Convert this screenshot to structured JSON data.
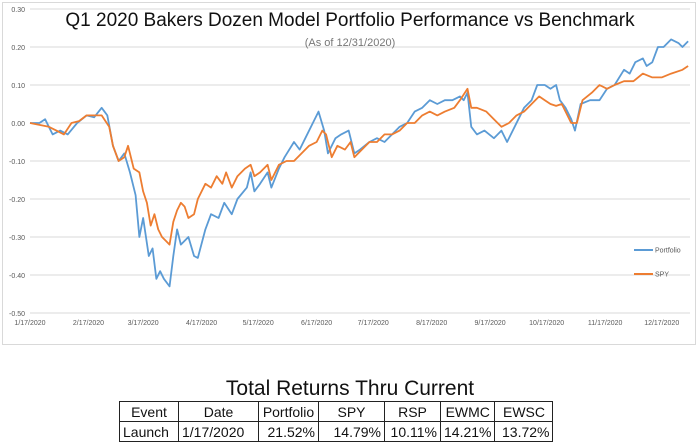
{
  "chart_data": {
    "type": "line",
    "title": "Q1 2020 Bakers Dozen Model Portfolio Performance vs Benchmark",
    "subtitle": "(As of 12/31/2020)",
    "xlabel": "",
    "ylabel": "",
    "x_unit": "days since 1/17/2020",
    "xlim": [
      0,
      350
    ],
    "ylim": [
      -0.5,
      0.3
    ],
    "grid": true,
    "legend_position": "right",
    "yticks": [
      "0.30",
      "0.20",
      "0.10",
      "0.00",
      "-0.10",
      "-0.20",
      "-0.30",
      "-0.40",
      "-0.50"
    ],
    "ytick_values": [
      0.3,
      0.2,
      0.1,
      0,
      -0.1,
      -0.2,
      -0.3,
      -0.4,
      -0.5
    ],
    "xticks": [
      "1/17/2020",
      "2/17/2020",
      "3/17/2020",
      "4/17/2020",
      "5/17/2020",
      "6/17/2020",
      "7/17/2020",
      "8/17/2020",
      "9/17/2020",
      "10/17/2020",
      "11/17/2020",
      "12/17/2020"
    ],
    "xtick_values": [
      0,
      31,
      60,
      91,
      121,
      152,
      182,
      213,
      244,
      274,
      305,
      335
    ],
    "series": [
      {
        "name": "Portfolio",
        "color": "#5b9bd5",
        "points": [
          [
            0,
            0
          ],
          [
            5,
            0
          ],
          [
            8,
            0.01
          ],
          [
            12,
            -0.03
          ],
          [
            16,
            -0.02
          ],
          [
            20,
            -0.03
          ],
          [
            25,
            0
          ],
          [
            30,
            0.02
          ],
          [
            34,
            0.015
          ],
          [
            38,
            0.04
          ],
          [
            41,
            0.02
          ],
          [
            44,
            -0.06
          ],
          [
            47,
            -0.1
          ],
          [
            50,
            -0.08
          ],
          [
            53,
            -0.13
          ],
          [
            56,
            -0.19
          ],
          [
            58,
            -0.3
          ],
          [
            60,
            -0.25
          ],
          [
            63,
            -0.35
          ],
          [
            65,
            -0.33
          ],
          [
            67,
            -0.41
          ],
          [
            69,
            -0.39
          ],
          [
            71,
            -0.41
          ],
          [
            74,
            -0.43
          ],
          [
            76,
            -0.35
          ],
          [
            78,
            -0.28
          ],
          [
            80,
            -0.32
          ],
          [
            84,
            -0.3
          ],
          [
            87,
            -0.35
          ],
          [
            89,
            -0.355
          ],
          [
            93,
            -0.28
          ],
          [
            96,
            -0.24
          ],
          [
            100,
            -0.25
          ],
          [
            103,
            -0.21
          ],
          [
            107,
            -0.24
          ],
          [
            110,
            -0.2
          ],
          [
            115,
            -0.17
          ],
          [
            117,
            -0.13
          ],
          [
            119,
            -0.18
          ],
          [
            122,
            -0.16
          ],
          [
            126,
            -0.13
          ],
          [
            128,
            -0.17
          ],
          [
            132,
            -0.12
          ],
          [
            135,
            -0.09
          ],
          [
            140,
            -0.05
          ],
          [
            143,
            -0.07
          ],
          [
            146,
            -0.04
          ],
          [
            150,
            0
          ],
          [
            153,
            0.03
          ],
          [
            156,
            -0.02
          ],
          [
            158,
            -0.08
          ],
          [
            162,
            -0.04
          ],
          [
            165,
            -0.03
          ],
          [
            169,
            -0.02
          ],
          [
            172,
            -0.08
          ],
          [
            175,
            -0.07
          ],
          [
            180,
            -0.05
          ],
          [
            184,
            -0.04
          ],
          [
            188,
            -0.05
          ],
          [
            192,
            -0.03
          ],
          [
            196,
            -0.01
          ],
          [
            200,
            0
          ],
          [
            204,
            0.03
          ],
          [
            208,
            0.04
          ],
          [
            212,
            0.06
          ],
          [
            216,
            0.05
          ],
          [
            220,
            0.06
          ],
          [
            224,
            0.06
          ],
          [
            228,
            0.07
          ],
          [
            230,
            0.06
          ],
          [
            232,
            0.08
          ],
          [
            234,
            -0.01
          ],
          [
            237,
            -0.03
          ],
          [
            241,
            -0.02
          ],
          [
            246,
            -0.04
          ],
          [
            250,
            -0.02
          ],
          [
            253,
            -0.05
          ],
          [
            257,
            -0.01
          ],
          [
            262,
            0.04
          ],
          [
            266,
            0.06
          ],
          [
            269,
            0.1
          ],
          [
            273,
            0.1
          ],
          [
            276,
            0.09
          ],
          [
            279,
            0.1
          ],
          [
            281,
            0.06
          ],
          [
            284,
            0.04
          ],
          [
            287,
            0.01
          ],
          [
            289,
            -0.02
          ],
          [
            292,
            0.05
          ],
          [
            297,
            0.06
          ],
          [
            302,
            0.06
          ],
          [
            306,
            0.09
          ],
          [
            310,
            0.1
          ],
          [
            315,
            0.14
          ],
          [
            318,
            0.13
          ],
          [
            321,
            0.16
          ],
          [
            325,
            0.17
          ],
          [
            327,
            0.15
          ],
          [
            330,
            0.16
          ],
          [
            333,
            0.2
          ],
          [
            336,
            0.2
          ],
          [
            340,
            0.22
          ],
          [
            344,
            0.21
          ],
          [
            346,
            0.2
          ],
          [
            349,
            0.215
          ]
        ]
      },
      {
        "name": "SPY",
        "color": "#ed7d31",
        "points": [
          [
            0,
            0
          ],
          [
            10,
            -0.01
          ],
          [
            14,
            -0.02
          ],
          [
            18,
            -0.03
          ],
          [
            22,
            0
          ],
          [
            26,
            0.005
          ],
          [
            30,
            0.02
          ],
          [
            38,
            0.02
          ],
          [
            42,
            -0.01
          ],
          [
            44,
            -0.06
          ],
          [
            47,
            -0.1
          ],
          [
            50,
            -0.09
          ],
          [
            52,
            -0.06
          ],
          [
            55,
            -0.12
          ],
          [
            58,
            -0.13
          ],
          [
            60,
            -0.18
          ],
          [
            62,
            -0.21
          ],
          [
            64,
            -0.27
          ],
          [
            66,
            -0.24
          ],
          [
            68,
            -0.28
          ],
          [
            70,
            -0.3
          ],
          [
            72,
            -0.31
          ],
          [
            74,
            -0.32
          ],
          [
            76,
            -0.26
          ],
          [
            78,
            -0.23
          ],
          [
            80,
            -0.21
          ],
          [
            82,
            -0.22
          ],
          [
            84,
            -0.25
          ],
          [
            87,
            -0.24
          ],
          [
            89,
            -0.2
          ],
          [
            93,
            -0.16
          ],
          [
            96,
            -0.17
          ],
          [
            99,
            -0.14
          ],
          [
            102,
            -0.16
          ],
          [
            104,
            -0.13
          ],
          [
            107,
            -0.17
          ],
          [
            110,
            -0.14
          ],
          [
            114,
            -0.12
          ],
          [
            117,
            -0.11
          ],
          [
            119,
            -0.14
          ],
          [
            122,
            -0.13
          ],
          [
            126,
            -0.11
          ],
          [
            128,
            -0.15
          ],
          [
            132,
            -0.11
          ],
          [
            136,
            -0.1
          ],
          [
            140,
            -0.1
          ],
          [
            144,
            -0.08
          ],
          [
            148,
            -0.06
          ],
          [
            152,
            -0.05
          ],
          [
            155,
            -0.02
          ],
          [
            157,
            -0.03
          ],
          [
            160,
            -0.09
          ],
          [
            163,
            -0.06
          ],
          [
            167,
            -0.07
          ],
          [
            170,
            -0.05
          ],
          [
            172,
            -0.09
          ],
          [
            176,
            -0.07
          ],
          [
            180,
            -0.05
          ],
          [
            184,
            -0.05
          ],
          [
            188,
            -0.03
          ],
          [
            192,
            -0.03
          ],
          [
            196,
            -0.02
          ],
          [
            200,
            0
          ],
          [
            204,
            0
          ],
          [
            208,
            0.02
          ],
          [
            212,
            0.03
          ],
          [
            216,
            0.02
          ],
          [
            220,
            0.03
          ],
          [
            225,
            0.04
          ],
          [
            228,
            0.06
          ],
          [
            232,
            0.09
          ],
          [
            234,
            0.04
          ],
          [
            237,
            0.04
          ],
          [
            242,
            0.03
          ],
          [
            246,
            0.01
          ],
          [
            250,
            -0.01
          ],
          [
            254,
            0
          ],
          [
            258,
            0.02
          ],
          [
            262,
            0.03
          ],
          [
            266,
            0.05
          ],
          [
            270,
            0.07
          ],
          [
            273,
            0.06
          ],
          [
            276,
            0.05
          ],
          [
            279,
            0.045
          ],
          [
            282,
            0.05
          ],
          [
            285,
            0.02
          ],
          [
            287,
            0
          ],
          [
            290,
            0
          ],
          [
            293,
            0.06
          ],
          [
            298,
            0.08
          ],
          [
            302,
            0.1
          ],
          [
            306,
            0.09
          ],
          [
            310,
            0.1
          ],
          [
            315,
            0.11
          ],
          [
            320,
            0.11
          ],
          [
            325,
            0.13
          ],
          [
            330,
            0.12
          ],
          [
            335,
            0.12
          ],
          [
            340,
            0.13
          ],
          [
            346,
            0.14
          ],
          [
            349,
            0.15
          ]
        ]
      }
    ]
  },
  "table": {
    "title": "Total Returns Thru Current",
    "headers": [
      "Event",
      "Date",
      "Portfolio",
      "SPY",
      "RSP",
      "EWMC",
      "EWSC"
    ],
    "rows": [
      [
        "Launch",
        "1/17/2020",
        "21.52%",
        "14.79%",
        "10.11%",
        "14.21%",
        "13.72%"
      ]
    ]
  }
}
